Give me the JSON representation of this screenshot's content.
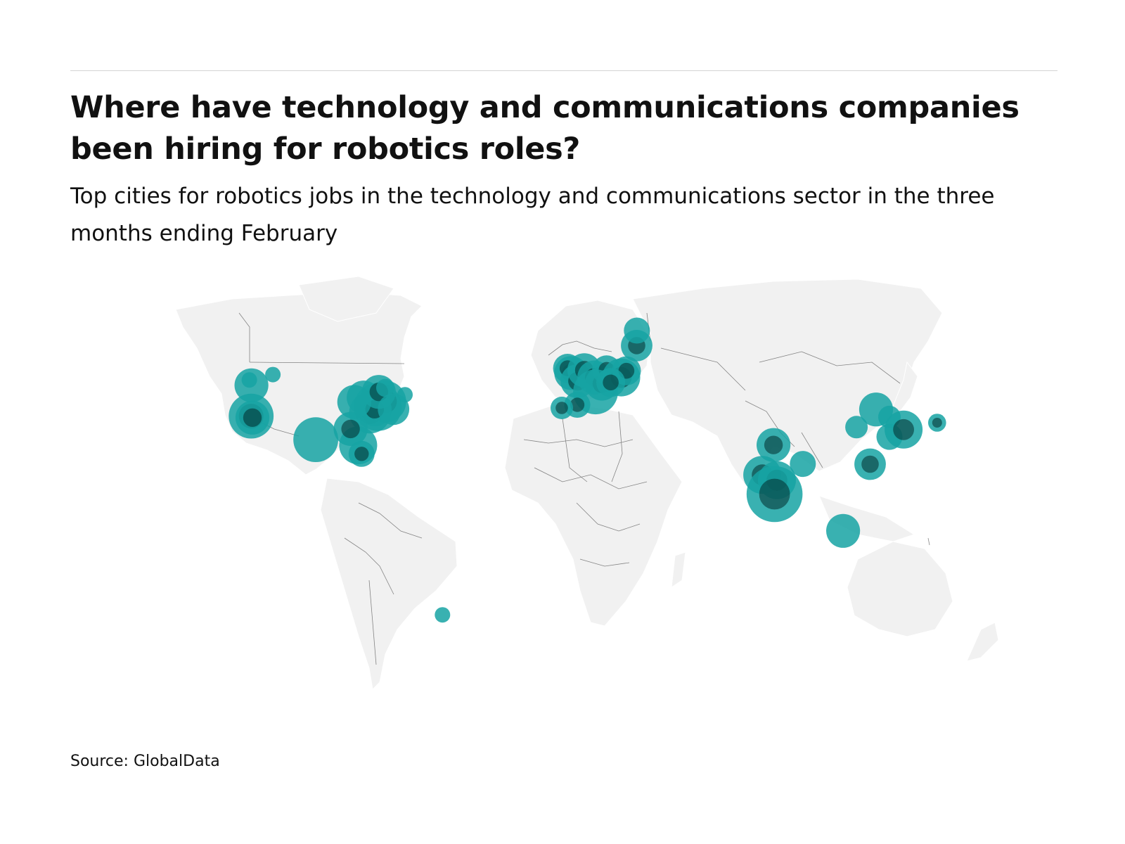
{
  "header": {
    "title": "Where have technology and communications companies been hiring for robotics roles?",
    "subtitle": "Top cities for robotics jobs in the technology and communications sector in the three months ending February"
  },
  "footer": {
    "source": "Source: GlobalData"
  },
  "colors": {
    "land": "#f1f1f1",
    "border": "#555555",
    "bubble": "#16a3a3",
    "bubble_dark": "#022b2b",
    "rule": "#d4d4d4"
  },
  "map_data": {
    "type": "bubble-map",
    "projection": "world",
    "bubbles": [
      {
        "lon": -122.3,
        "lat": 47.6,
        "size": 3
      },
      {
        "lon": -123.1,
        "lat": 49.3,
        "size": 0.3
      },
      {
        "lon": -114.1,
        "lat": 51.0,
        "size": 0.3
      },
      {
        "lon": -122.4,
        "lat": 37.8,
        "size": 6,
        "dark": true
      },
      {
        "lon": -121.9,
        "lat": 37.3,
        "size": 3,
        "dark": true
      },
      {
        "lon": -97.7,
        "lat": 30.3,
        "size": 6
      },
      {
        "lon": -81.5,
        "lat": 28.5,
        "size": 4
      },
      {
        "lon": -80.2,
        "lat": 25.8,
        "size": 1.5,
        "dark": true
      },
      {
        "lon": -79.4,
        "lat": 43.7,
        "size": 3
      },
      {
        "lon": -77.0,
        "lat": 38.9,
        "size": 5,
        "dark": true
      },
      {
        "lon": -74.0,
        "lat": 40.7,
        "size": 7,
        "dark": true
      },
      {
        "lon": -71.1,
        "lat": 42.4,
        "size": 5,
        "dark": true
      },
      {
        "lon": -75.2,
        "lat": 40.0,
        "size": 3,
        "dark": true
      },
      {
        "lon": -73.6,
        "lat": 45.5,
        "size": 3,
        "dark": true
      },
      {
        "lon": -83.0,
        "lat": 42.3,
        "size": 3
      },
      {
        "lon": -84.4,
        "lat": 33.7,
        "size": 3,
        "dark": true
      },
      {
        "lon": -68.0,
        "lat": 40.0,
        "size": 2.5
      },
      {
        "lon": -71.2,
        "lat": 46.8,
        "size": 0.5
      },
      {
        "lon": -63.6,
        "lat": 44.6,
        "size": 0.3
      },
      {
        "lon": -49.3,
        "lat": -25.4,
        "size": 0.3
      },
      {
        "lon": -0.1,
        "lat": 51.5,
        "size": 3,
        "dark": true
      },
      {
        "lon": -1.5,
        "lat": 53.0,
        "size": 2,
        "dark": true
      },
      {
        "lon": 2.3,
        "lat": 48.9,
        "size": 3,
        "dark": true
      },
      {
        "lon": 4.9,
        "lat": 52.4,
        "size": 3,
        "dark": true
      },
      {
        "lon": 8.7,
        "lat": 50.1,
        "size": 3,
        "dark": true
      },
      {
        "lon": 11.6,
        "lat": 48.1,
        "size": 3,
        "dark": true
      },
      {
        "lon": 13.4,
        "lat": 52.5,
        "size": 2,
        "dark": true
      },
      {
        "lon": 9.2,
        "lat": 45.5,
        "size": 6
      },
      {
        "lon": 2.2,
        "lat": 41.4,
        "size": 1.5,
        "dark": true
      },
      {
        "lon": -3.7,
        "lat": 40.4,
        "size": 1,
        "dark": true
      },
      {
        "lon": 19.0,
        "lat": 50.1,
        "size": 4,
        "dark": true
      },
      {
        "lon": 21.0,
        "lat": 52.2,
        "size": 2,
        "dark": true
      },
      {
        "lon": 24.9,
        "lat": 60.2,
        "size": 2.5,
        "dark": true
      },
      {
        "lon": 25.0,
        "lat": 65.0,
        "size": 1.5
      },
      {
        "lon": 15.0,
        "lat": 48.5,
        "size": 2,
        "dark": true
      },
      {
        "lon": 77.2,
        "lat": 28.6,
        "size": 3,
        "dark": true
      },
      {
        "lon": 72.9,
        "lat": 19.1,
        "size": 4,
        "dark": true
      },
      {
        "lon": 78.5,
        "lat": 17.4,
        "size": 4,
        "dark": true
      },
      {
        "lon": 77.6,
        "lat": 13.0,
        "size": 10,
        "dark": true
      },
      {
        "lon": 88.4,
        "lat": 22.6,
        "size": 1.5
      },
      {
        "lon": 103.8,
        "lat": 1.3,
        "size": 3
      },
      {
        "lon": 116.4,
        "lat": 39.9,
        "size": 3
      },
      {
        "lon": 121.5,
        "lat": 37.5,
        "size": 1
      },
      {
        "lon": 108.9,
        "lat": 34.3,
        "size": 1
      },
      {
        "lon": 121.5,
        "lat": 31.2,
        "size": 1.5
      },
      {
        "lon": 126.9,
        "lat": 33.5,
        "size": 4,
        "dark": true
      },
      {
        "lon": 114.1,
        "lat": 22.5,
        "size": 2.5,
        "dark": true
      },
      {
        "lon": 139.7,
        "lat": 35.7,
        "size": 0.5,
        "dark": true
      }
    ]
  }
}
